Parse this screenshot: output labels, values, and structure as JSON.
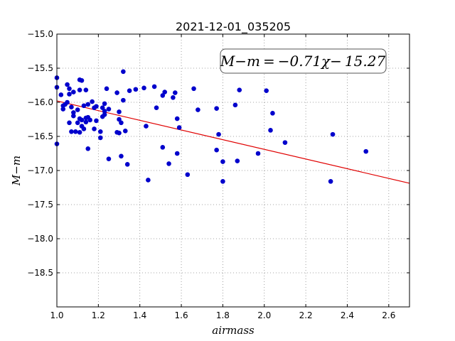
{
  "chart_data": {
    "type": "scatter",
    "title": "2021-12-01_035205",
    "xlabel": "airmass",
    "ylabel": "M−m",
    "xlim": [
      1.0,
      2.7
    ],
    "ylim": [
      -15.0,
      -19.0
    ],
    "y_inverted": true,
    "grid": true,
    "xticks": [
      "1.0",
      "1.2",
      "1.4",
      "1.6",
      "1.8",
      "2.0",
      "2.2",
      "2.4",
      "2.6"
    ],
    "yticks": [
      "−15.0",
      "−15.5",
      "−16.0",
      "−16.5",
      "−17.0",
      "−17.5",
      "−18.0",
      "−18.5"
    ],
    "annotation": "M−m = −0.71χ− 15.27",
    "fit": {
      "slope": -0.71,
      "intercept": -15.27,
      "color": "#e00000"
    },
    "point_color": "#0000cc",
    "points": [
      [
        1.0,
        -15.64
      ],
      [
        1.0,
        -15.78
      ],
      [
        1.0,
        -16.61
      ],
      [
        1.02,
        -15.89
      ],
      [
        1.03,
        -16.05
      ],
      [
        1.03,
        -16.1
      ],
      [
        1.04,
        -16.03
      ],
      [
        1.05,
        -16.0
      ],
      [
        1.05,
        -15.74
      ],
      [
        1.06,
        -15.8
      ],
      [
        1.06,
        -15.88
      ],
      [
        1.06,
        -16.3
      ],
      [
        1.07,
        -16.07
      ],
      [
        1.07,
        -16.43
      ],
      [
        1.08,
        -15.85
      ],
      [
        1.08,
        -16.15
      ],
      [
        1.08,
        -16.2
      ],
      [
        1.09,
        -16.43
      ],
      [
        1.1,
        -16.11
      ],
      [
        1.1,
        -16.3
      ],
      [
        1.11,
        -15.67
      ],
      [
        1.11,
        -15.82
      ],
      [
        1.11,
        -16.24
      ],
      [
        1.11,
        -16.44
      ],
      [
        1.12,
        -15.68
      ],
      [
        1.12,
        -16.26
      ],
      [
        1.12,
        -16.35
      ],
      [
        1.13,
        -16.05
      ],
      [
        1.13,
        -16.39
      ],
      [
        1.14,
        -16.23
      ],
      [
        1.14,
        -16.29
      ],
      [
        1.14,
        -15.82
      ],
      [
        1.15,
        -16.03
      ],
      [
        1.15,
        -16.22
      ],
      [
        1.15,
        -16.68
      ],
      [
        1.16,
        -16.26
      ],
      [
        1.17,
        -15.99
      ],
      [
        1.18,
        -16.08
      ],
      [
        1.18,
        -16.39
      ],
      [
        1.19,
        -16.06
      ],
      [
        1.19,
        -16.27
      ],
      [
        1.21,
        -16.52
      ],
      [
        1.21,
        -16.43
      ],
      [
        1.22,
        -16.21
      ],
      [
        1.22,
        -16.08
      ],
      [
        1.23,
        -16.13
      ],
      [
        1.23,
        -16.18
      ],
      [
        1.23,
        -16.02
      ],
      [
        1.24,
        -15.8
      ],
      [
        1.25,
        -16.1
      ],
      [
        1.25,
        -16.83
      ],
      [
        1.29,
        -16.44
      ],
      [
        1.29,
        -15.86
      ],
      [
        1.3,
        -16.45
      ],
      [
        1.3,
        -16.14
      ],
      [
        1.3,
        -16.25
      ],
      [
        1.31,
        -16.3
      ],
      [
        1.31,
        -16.79
      ],
      [
        1.32,
        -15.55
      ],
      [
        1.32,
        -15.97
      ],
      [
        1.33,
        -16.42
      ],
      [
        1.34,
        -16.91
      ],
      [
        1.35,
        -15.83
      ],
      [
        1.38,
        -15.81
      ],
      [
        1.42,
        -15.79
      ],
      [
        1.43,
        -16.35
      ],
      [
        1.44,
        -17.14
      ],
      [
        1.47,
        -15.77
      ],
      [
        1.48,
        -16.08
      ],
      [
        1.51,
        -15.9
      ],
      [
        1.51,
        -16.66
      ],
      [
        1.52,
        -15.85
      ],
      [
        1.54,
        -16.9
      ],
      [
        1.56,
        -15.93
      ],
      [
        1.57,
        -15.86
      ],
      [
        1.58,
        -16.24
      ],
      [
        1.58,
        -16.75
      ],
      [
        1.59,
        -16.37
      ],
      [
        1.63,
        -17.06
      ],
      [
        1.66,
        -15.8
      ],
      [
        1.68,
        -16.11
      ],
      [
        1.77,
        -16.7
      ],
      [
        1.77,
        -16.09
      ],
      [
        1.78,
        -16.47
      ],
      [
        1.8,
        -16.87
      ],
      [
        1.8,
        -17.16
      ],
      [
        1.86,
        -16.04
      ],
      [
        1.87,
        -16.86
      ],
      [
        1.88,
        -15.82
      ],
      [
        1.97,
        -16.75
      ],
      [
        2.01,
        -15.83
      ],
      [
        2.03,
        -16.41
      ],
      [
        2.04,
        -16.16
      ],
      [
        2.1,
        -16.59
      ],
      [
        2.32,
        -17.16
      ],
      [
        2.33,
        -16.47
      ],
      [
        2.49,
        -16.72
      ]
    ]
  }
}
